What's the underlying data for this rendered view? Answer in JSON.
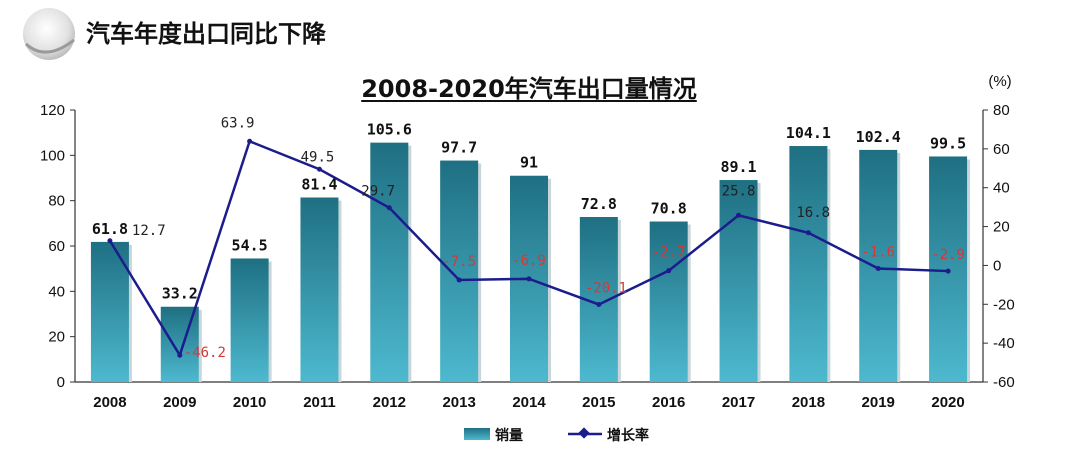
{
  "header": {
    "title": "汽车年度出口同比下降"
  },
  "chart_data": {
    "type": "bar",
    "title": "2008-2020年汽车出口量情况",
    "y2_unit": "(%)",
    "categories": [
      "2008",
      "2009",
      "2010",
      "2011",
      "2012",
      "2013",
      "2014",
      "2015",
      "2016",
      "2017",
      "2018",
      "2019",
      "2020"
    ],
    "series": [
      {
        "name": "销量",
        "type": "bar",
        "axis": "left",
        "color": "#2f8fa3",
        "values": [
          61.8,
          33.2,
          54.5,
          81.4,
          105.6,
          97.7,
          91,
          72.8,
          70.8,
          89.1,
          104.1,
          102.4,
          99.5
        ],
        "labels": [
          "61.8",
          "33.2",
          "54.5",
          "81.4",
          "105.6",
          "97.7",
          "91",
          "72.8",
          "70.8",
          "89.1",
          "104.1",
          "102.4",
          "99.5"
        ]
      },
      {
        "name": "增长率",
        "type": "line",
        "axis": "right",
        "color": "#1c1c8c",
        "values": [
          12.7,
          -46.2,
          63.9,
          49.5,
          29.7,
          -7.5,
          -6.9,
          -20.1,
          -2.7,
          25.8,
          16.8,
          -1.6,
          -2.9
        ],
        "labels": [
          "12.7",
          "-46.2",
          "63.9",
          "49.5",
          "29.7",
          "-7.5",
          "-6.9",
          "-20.1",
          "-2.7",
          "25.8",
          "16.8",
          "-1.6",
          "-2.9"
        ]
      }
    ],
    "ylim": [
      0,
      120
    ],
    "yticks": [
      "0",
      "20",
      "40",
      "60",
      "80",
      "100",
      "120"
    ],
    "y2lim": [
      -60,
      80
    ],
    "y2ticks": [
      "-60",
      "-40",
      "-20",
      "0",
      "20",
      "40",
      "60",
      "80"
    ],
    "legend_position": "bottom"
  }
}
